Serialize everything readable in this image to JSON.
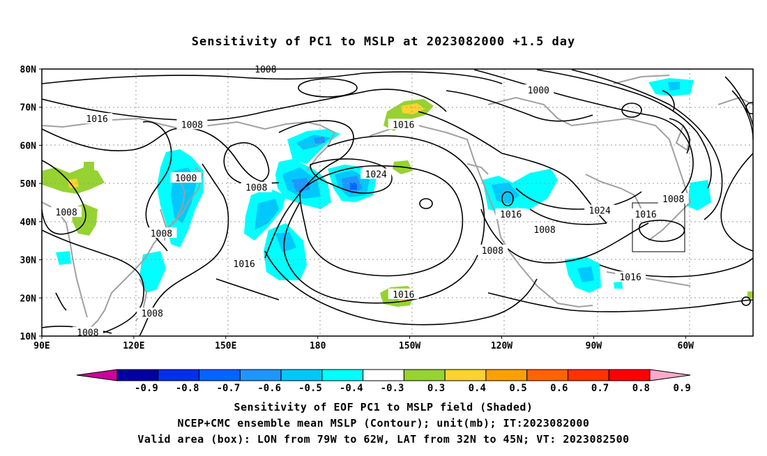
{
  "title": "Sensitivity of PC1 to MSLP at 2023082000 +1.5 day",
  "map": {
    "lat_labels": [
      "80N",
      "70N",
      "60N",
      "50N",
      "40N",
      "30N",
      "20N",
      "10N"
    ],
    "lon_labels": [
      "90E",
      "120E",
      "150E",
      "180",
      "150W",
      "120W",
      "90W",
      "60W"
    ],
    "contour_labels": [
      {
        "text": "1008",
        "lon": 163,
        "lat": 80
      },
      {
        "text": "1000",
        "lon": -108,
        "lat": 74.5
      },
      {
        "text": "1016",
        "lon": 108,
        "lat": 67
      },
      {
        "text": "1008",
        "lon": 139,
        "lat": 65.5
      },
      {
        "text": "1016",
        "lon": -152,
        "lat": 65.5
      },
      {
        "text": "1024",
        "lon": -161,
        "lat": 52.5
      },
      {
        "text": "1000",
        "lon": 137,
        "lat": 51.5
      },
      {
        "text": "1008",
        "lon": 160,
        "lat": 49
      },
      {
        "text": "1008",
        "lon": -106,
        "lat": 38
      },
      {
        "text": "1008",
        "lon": -64,
        "lat": 46
      },
      {
        "text": "1008",
        "lon": 98,
        "lat": 42.5
      },
      {
        "text": "1008",
        "lon": 129,
        "lat": 37
      },
      {
        "text": "1016",
        "lon": -117,
        "lat": 42
      },
      {
        "text": "1024",
        "lon": -88,
        "lat": 43
      },
      {
        "text": "1016",
        "lon": -73,
        "lat": 42
      },
      {
        "text": "1008",
        "lon": -123,
        "lat": 32.5
      },
      {
        "text": "1016",
        "lon": 156,
        "lat": 29
      },
      {
        "text": "1016",
        "lon": -78,
        "lat": 25.5
      },
      {
        "text": "1016",
        "lon": -152,
        "lat": 21
      },
      {
        "text": "1008",
        "lon": 126,
        "lat": 16
      },
      {
        "text": "1008",
        "lon": 105,
        "lat": 11
      }
    ]
  },
  "colorbar": {
    "labels": [
      "-0.9",
      "-0.8",
      "-0.7",
      "-0.6",
      "-0.5",
      "-0.4",
      "-0.3",
      "0.3",
      "0.4",
      "0.5",
      "0.6",
      "0.7",
      "0.8",
      "0.9"
    ],
    "colors": [
      "#0000a0",
      "#0030e8",
      "#0064ff",
      "#1e96ff",
      "#00c8ff",
      "#00ffff",
      "#ffffff",
      "#96d232",
      "#ffd232",
      "#ffa000",
      "#ff6400",
      "#ff3200",
      "#ff0000"
    ],
    "low_end_color": "#cc0099",
    "high_end_color": "#ffaacc"
  },
  "caption": {
    "line1": "Sensitivity of EOF PC1 to MSLP field (Shaded)",
    "line2": "NCEP+CMC ensemble mean MSLP (Contour); unit(mb); IT:2023082000",
    "line3": "Valid area (box): LON from 79W to 62W, LAT from 32N to 45N; VT: 2023082500"
  }
}
